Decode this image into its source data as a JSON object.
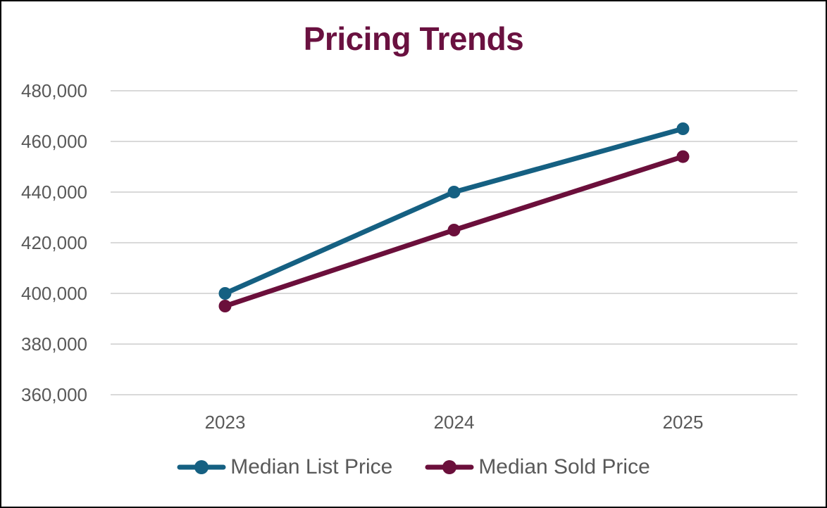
{
  "page": {
    "background": "#ffffff",
    "border_color": "#000000"
  },
  "chart_data": {
    "type": "line",
    "title": "Pricing Trends",
    "title_color": "#6a1140",
    "categories": [
      "2023",
      "2024",
      "2025"
    ],
    "series": [
      {
        "name": "Median List Price",
        "color": "#156082",
        "values": [
          400000,
          440000,
          465000
        ]
      },
      {
        "name": "Median Sold Price",
        "color": "#6b0f3b",
        "values": [
          395000,
          425000,
          454000
        ]
      }
    ],
    "ylim": [
      360000,
      480000
    ],
    "ytick_interval": 20000,
    "yticks": [
      {
        "value": 360000,
        "label": "360,000"
      },
      {
        "value": 380000,
        "label": "380,000"
      },
      {
        "value": 400000,
        "label": "400,000"
      },
      {
        "value": 420000,
        "label": "420,000"
      },
      {
        "value": 440000,
        "label": "440,000"
      },
      {
        "value": 460000,
        "label": "460,000"
      },
      {
        "value": 480000,
        "label": "480,000"
      }
    ],
    "grid": true,
    "gridline_color": "#d9d9d9",
    "axis_text_color": "#595959",
    "legend_position": "bottom",
    "xlabel": "",
    "ylabel": ""
  }
}
